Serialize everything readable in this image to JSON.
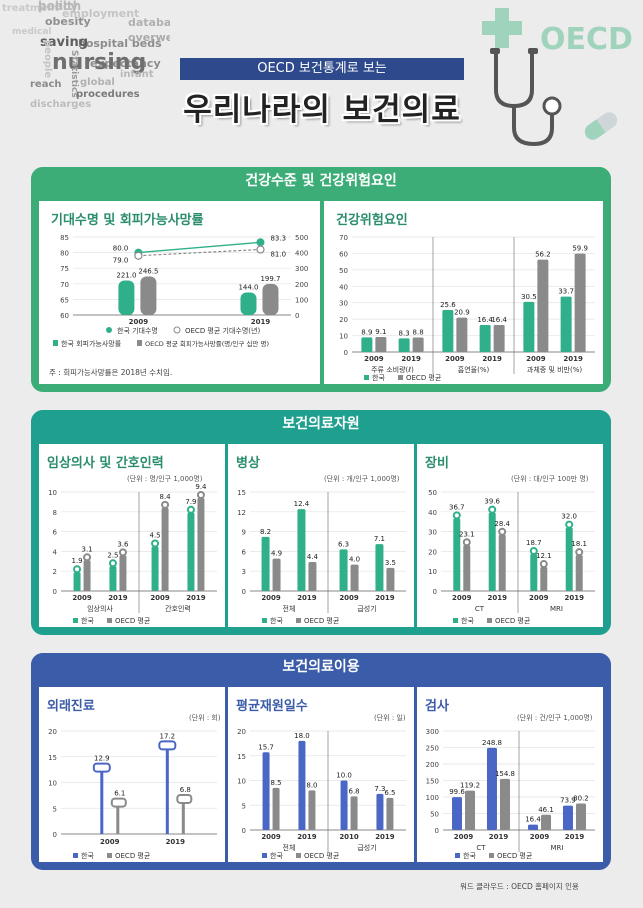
{
  "header": {
    "subtitle": "OECD 보건통계로 보는",
    "title": "우리나라의 보건의료",
    "oecd_mark": "OECD"
  },
  "word_cloud": [
    "health",
    "treatment",
    "employment",
    "obesity",
    "database",
    "medical",
    "hospital beds",
    "overweight",
    "saving",
    "people",
    "expectancy",
    "nursing",
    "Statistics",
    "reach",
    "infant",
    "global",
    "procedures",
    "discharges",
    "policy"
  ],
  "colors": {
    "korea": "#2fb08a",
    "oecd": "#8a8a8a",
    "sec1": "#3dad78",
    "sec2": "#1fa08f",
    "sec3": "#3b5ca8",
    "korea3": "#4a67c6"
  },
  "sections": [
    {
      "title": "건강수준 및 건강위험요인"
    },
    {
      "title": "보건의료자원"
    },
    {
      "title": "보건의료이용"
    }
  ],
  "footnote": "주 : 회피가능사망률은 2018년 수치임.",
  "credit": "워드 클라우드 : OECD 홈페이지 인용",
  "chart_data": [
    {
      "id": "life",
      "type": "line",
      "title": "기대수명 및 회피가능사망률",
      "categories": [
        "2009",
        "2019"
      ],
      "series": [
        {
          "name": "한국 기대수명",
          "values": [
            80.0,
            83.3
          ]
        },
        {
          "name": "OECD 평균 기대수명(년)",
          "values": [
            79.0,
            81.0
          ]
        }
      ],
      "bar_series": [
        {
          "name": "한국 회피가능사망률",
          "values": [
            221.0,
            144.0
          ]
        },
        {
          "name": "OECD 평균 회피가능사망률(명/인구 십만 명)",
          "values": [
            246.5,
            199.7
          ]
        }
      ],
      "ylim": [
        60,
        85
      ],
      "ylim_right": [
        0,
        500
      ],
      "yticks": [
        60,
        65,
        70,
        75,
        80,
        85
      ],
      "yticks_right": [
        0,
        100,
        200,
        300,
        400,
        500
      ],
      "labels_life": [
        [
          "80.0",
          "79.0"
        ],
        [
          "83.3",
          "81.0"
        ]
      ],
      "labels_avoid": [
        [
          "221.0",
          "246.5"
        ],
        [
          "144.0",
          "199.7"
        ]
      ]
    },
    {
      "id": "risk",
      "type": "bar",
      "title": "건강위험요인",
      "groups": [
        {
          "name": "주류 소비량(ℓ)",
          "categories": [
            "2009",
            "2019"
          ],
          "korea": [
            8.9,
            8.3
          ],
          "oecd": [
            9.1,
            8.8
          ]
        },
        {
          "name": "흡연율(%)",
          "categories": [
            "2009",
            "2019"
          ],
          "korea": [
            25.6,
            16.4
          ],
          "oecd": [
            20.9,
            16.4
          ]
        },
        {
          "name": "과체중 및 비만(%)",
          "categories": [
            "2009",
            "2019"
          ],
          "korea": [
            30.5,
            33.7
          ],
          "oecd": [
            56.2,
            59.9
          ]
        }
      ],
      "ylim": [
        0,
        70
      ],
      "yticks": [
        0,
        10,
        20,
        30,
        40,
        50,
        60,
        70
      ],
      "labels": [
        [
          "8.9",
          "9.1",
          "8.3",
          "8.8"
        ],
        [
          "25.6",
          "20.9",
          "16.4",
          "16.4"
        ],
        [
          "30.5",
          "56.2",
          "33.7",
          "59.9"
        ]
      ],
      "legend": [
        "한국",
        "OECD 평균"
      ]
    },
    {
      "id": "doctors",
      "type": "bar",
      "title": "임상의사 및 간호인력",
      "unit": "(단위 : 명/인구 1,000명)",
      "groups": [
        {
          "name": "임상의사",
          "categories": [
            "2009",
            "2019"
          ],
          "korea": [
            1.9,
            2.5
          ],
          "oecd": [
            3.1,
            3.6
          ]
        },
        {
          "name": "간호인력",
          "categories": [
            "2009",
            "2019"
          ],
          "korea": [
            4.5,
            7.9
          ],
          "oecd": [
            8.4,
            9.4
          ]
        }
      ],
      "ylim": [
        0,
        10
      ],
      "yticks": [
        0,
        2,
        4,
        6,
        8,
        10
      ],
      "labels": [
        [
          "1.9",
          "3.1",
          "2.5",
          "3.6"
        ],
        [
          "4.5",
          "8.4",
          "7.9",
          "9.4"
        ]
      ],
      "legend": [
        "한국",
        "OECD 평균"
      ]
    },
    {
      "id": "beds",
      "type": "bar",
      "title": "병상",
      "unit": "(단위 : 개/인구 1,000명)",
      "groups": [
        {
          "name": "전체",
          "categories": [
            "2009",
            "2019"
          ],
          "korea": [
            8.2,
            12.4
          ],
          "oecd": [
            4.9,
            4.4
          ]
        },
        {
          "name": "급성기",
          "categories": [
            "2009",
            "2019"
          ],
          "korea": [
            6.3,
            7.1
          ],
          "oecd": [
            4.0,
            3.5
          ]
        }
      ],
      "ylim": [
        0,
        15
      ],
      "yticks": [
        0,
        3,
        6,
        9,
        12,
        15
      ],
      "labels": [
        [
          "8.2",
          "4.9",
          "12.4",
          "4.4"
        ],
        [
          "6.3",
          "4.0",
          "7.1",
          "3.5"
        ]
      ],
      "legend": [
        "한국",
        "OECD 평균"
      ]
    },
    {
      "id": "equip",
      "type": "bar",
      "title": "장비",
      "unit": "(단위 : 대/인구 100만 명)",
      "groups": [
        {
          "name": "CT",
          "categories": [
            "2009",
            "2019"
          ],
          "korea": [
            36.7,
            39.6
          ],
          "oecd": [
            23.1,
            28.4
          ]
        },
        {
          "name": "MRI",
          "categories": [
            "2009",
            "2019"
          ],
          "korea": [
            18.7,
            32.0
          ],
          "oecd": [
            12.1,
            18.1
          ]
        }
      ],
      "ylim": [
        0,
        50
      ],
      "yticks": [
        0,
        10,
        20,
        30,
        40,
        50
      ],
      "labels": [
        [
          "36.7",
          "23.1",
          "39.6",
          "28.4"
        ],
        [
          "18.7",
          "12.1",
          "32.0",
          "18.1"
        ]
      ],
      "legend": [
        "한국",
        "OECD 평균"
      ]
    },
    {
      "id": "visits",
      "type": "bar",
      "title": "외래진료",
      "unit": "(단위 : 회)",
      "categories": [
        "2009",
        "2019"
      ],
      "korea": [
        12.9,
        17.2
      ],
      "oecd": [
        6.1,
        6.8
      ],
      "ylim": [
        0,
        20
      ],
      "yticks": [
        0,
        5,
        10,
        15,
        20
      ],
      "labels": [
        [
          "12.9",
          "6.1"
        ],
        [
          "17.2",
          "6.8"
        ]
      ],
      "legend": [
        "한국",
        "OECD 평균"
      ]
    },
    {
      "id": "stay",
      "type": "bar",
      "title": "평균재원일수",
      "unit": "(단위 : 일)",
      "groups": [
        {
          "name": "전체",
          "categories": [
            "2009",
            "2019"
          ],
          "korea": [
            15.7,
            18.0
          ],
          "oecd": [
            8.5,
            8.0
          ]
        },
        {
          "name": "급성기",
          "categories": [
            "2010",
            "2019"
          ],
          "korea": [
            10.0,
            7.3
          ],
          "oecd": [
            6.8,
            6.5
          ]
        }
      ],
      "ylim": [
        0,
        20
      ],
      "yticks": [
        0,
        5,
        10,
        15,
        20
      ],
      "labels": [
        [
          "15.7",
          "8.5",
          "18.0",
          "8.0"
        ],
        [
          "10.0",
          "6.8",
          "7.3",
          "6.5"
        ]
      ],
      "legend": [
        "한국",
        "OECD 평균"
      ]
    },
    {
      "id": "exam",
      "type": "bar",
      "title": "검사",
      "unit": "(단위 : 건/인구 1,000명)",
      "groups": [
        {
          "name": "CT",
          "categories": [
            "2009",
            "2019"
          ],
          "korea": [
            99.6,
            248.8
          ],
          "oecd": [
            119.2,
            154.8
          ]
        },
        {
          "name": "MRI",
          "categories": [
            "2009",
            "2019"
          ],
          "korea": [
            16.4,
            73.9
          ],
          "oecd": [
            46.1,
            80.2
          ]
        }
      ],
      "ylim": [
        0,
        300
      ],
      "yticks": [
        0,
        50,
        100,
        150,
        200,
        250,
        300
      ],
      "labels": [
        [
          "99.6",
          "119.2",
          "248.8",
          "154.8"
        ],
        [
          "16.4",
          "46.1",
          "73.9",
          "80.2"
        ]
      ],
      "legend": [
        "한국",
        "OECD 평균"
      ]
    }
  ]
}
